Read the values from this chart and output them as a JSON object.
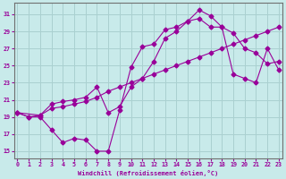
{
  "xlabel": "Windchill (Refroidissement éolien,°C)",
  "bg_color": "#c8eaea",
  "grid_color": "#aad0d0",
  "line_color": "#990099",
  "x_ticks": [
    0,
    1,
    2,
    3,
    4,
    5,
    6,
    7,
    8,
    9,
    10,
    11,
    12,
    13,
    14,
    15,
    16,
    17,
    18,
    19,
    20,
    21,
    22,
    23
  ],
  "y_ticks": [
    15,
    17,
    19,
    21,
    23,
    25,
    27,
    29,
    31
  ],
  "xlim": [
    -0.3,
    23.3
  ],
  "ylim": [
    14.2,
    32.3
  ],
  "line1_x": [
    0,
    1,
    2,
    3,
    4,
    5,
    6,
    7,
    8,
    9,
    10,
    11,
    12,
    13,
    14,
    15,
    16,
    17,
    18,
    19,
    20,
    21,
    22,
    23
  ],
  "line1_y": [
    19.5,
    19.0,
    19.0,
    17.5,
    16.0,
    16.5,
    16.3,
    15.0,
    15.0,
    19.8,
    24.8,
    27.2,
    27.5,
    29.2,
    29.5,
    30.2,
    31.5,
    30.8,
    29.5,
    28.8,
    27.0,
    26.5,
    25.2,
    25.5
  ],
  "line2_x": [
    0,
    1,
    2,
    3,
    4,
    5,
    6,
    7,
    8,
    9,
    10,
    11,
    12,
    13,
    14,
    15,
    16,
    17,
    18,
    19,
    20,
    21,
    22,
    23
  ],
  "line2_y": [
    19.5,
    19.0,
    19.2,
    20.0,
    20.2,
    20.5,
    20.8,
    21.3,
    22.0,
    22.5,
    23.0,
    23.5,
    24.0,
    24.5,
    25.0,
    25.5,
    26.0,
    26.5,
    27.0,
    27.5,
    28.0,
    28.5,
    29.0,
    29.5
  ],
  "line3_x": [
    0,
    2,
    3,
    4,
    5,
    6,
    7,
    8,
    9,
    10,
    11,
    12,
    13,
    14,
    15,
    16,
    17,
    18,
    19,
    20,
    21,
    22,
    23
  ],
  "line3_y": [
    19.5,
    19.2,
    20.5,
    20.8,
    21.0,
    21.3,
    22.5,
    19.5,
    20.2,
    22.5,
    23.5,
    25.5,
    28.2,
    29.0,
    30.2,
    30.5,
    29.5,
    29.5,
    24.0,
    23.5,
    23.0,
    27.0,
    24.5
  ]
}
